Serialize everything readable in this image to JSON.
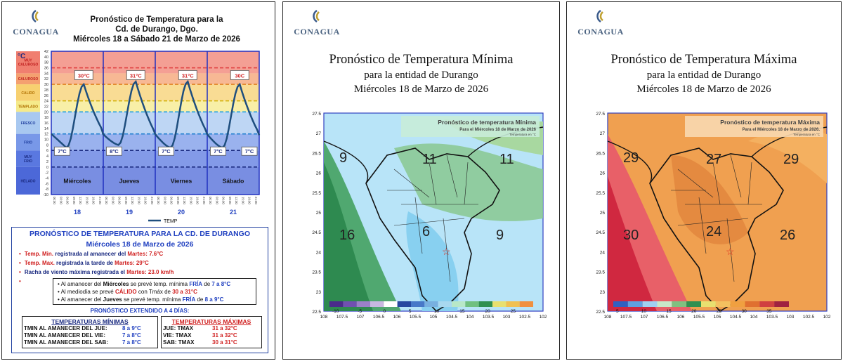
{
  "panel1": {
    "logo": "CONAGUA",
    "header": [
      "Pronóstico  de Temperatura para la",
      "Cd. de Durango, Dgo.",
      "Miércoles 18 a Sábado 21 de Marzo de 2026"
    ],
    "unit": "°C",
    "zones": [
      "MUY CALUROSO",
      "CALUROSO",
      "CALIDO",
      "TEMPLADO",
      "FRESCO",
      "FRIO",
      "MUY FRIO",
      "HELADO"
    ],
    "y_ticks": [
      "42",
      "40",
      "38",
      "36",
      "34",
      "32",
      "30",
      "28",
      "26",
      "24",
      "22",
      "20",
      "18",
      "16",
      "14",
      "12",
      "10",
      "8",
      "6",
      "4",
      "2",
      "0",
      "-2",
      "-4",
      "-6",
      "-8",
      "-10"
    ],
    "days": [
      "Miércoles",
      "Jueves",
      "Viernes",
      "Sábado"
    ],
    "day_numbers": [
      "18",
      "19",
      "20",
      "21"
    ],
    "max_labels": [
      "30°C",
      "31°C",
      "31°C",
      "30C"
    ],
    "min_labels": [
      "7°C",
      "8°C",
      "7°C",
      "7°C",
      "7°C"
    ],
    "legend": "TEMP",
    "box": {
      "title": "PRONÓSTICO DE TEMPERATURA PARA LA CD. DE DURANGO",
      "subtitle": "Miércoles 18 de Marzo de 2026",
      "rec1_a": "Temp. Min.",
      "rec1_b": " registrada al amanecer del ",
      "rec1_c": "Martes",
      "rec1_d": ": 7.6°C",
      "rec2_a": "Temp. Max.",
      "rec2_b": " registrada la tarde de ",
      "rec2_c": "Martes",
      "rec2_d": ":  29°C",
      "rec3_a": "Racha de viento máxima registrada el ",
      "rec3_b": "Martes",
      "rec3_c": ":  23.0 km/h",
      "l1_a": "Al amanecer del ",
      "l1_b": "Miércoles",
      "l1_c": " se prevé temp. mínima ",
      "l1_d": "FRÍA",
      "l1_e": " de ",
      "l1_f": "7 a 8°C",
      "l2_a": "Al mediodía se prevé ",
      "l2_b": "CÁLIDO",
      "l2_c": " con Tmáx de ",
      "l2_d": "30 a 31°C",
      "l3_a": "Al amanecer del ",
      "l3_b": "Jueves",
      "l3_c": " se prevé temp. mínima ",
      "l3_d": "FRÍA",
      "l3_e": " de ",
      "l3_f": "8 a 9°C",
      "extended": "PRONÓSTICO EXTENDIDO A 4 DÍAS:",
      "tmin_title": "TEMPERATURAS MÍNIMAS",
      "tmin_rows": [
        {
          "label": "TMIN AL AMANECER DEL  JUE:",
          "value": "8 a 9°C"
        },
        {
          "label": "TMIN AL AMANECER DEL  VIE:",
          "value": "7 a 8°C"
        },
        {
          "label": "TMIN AL AMANECER DEL  SAB:",
          "value": "7 a 8°C"
        }
      ],
      "tmax_title": "TEMPERATURAS MÁXIMAS",
      "tmax_rows": [
        {
          "label": "JUE:    TMAX",
          "value": "31 a 32°C"
        },
        {
          "label": "VIE:    TMAX",
          "value": "31 a 32°C"
        },
        {
          "label": "SAB:    TMAX",
          "value": "30 a 31°C"
        }
      ]
    }
  },
  "panel2": {
    "logo": "CONAGUA",
    "title": "Pronóstico de Temperatura Mínima",
    "subtitle": "para la entidad de Durango",
    "date": "Miércoles 18 de Marzo de 2026",
    "map_title": "Pronóstico de temperatura Mínima",
    "map_sub": "Para el Miércoles 18  de Marzo de 2026",
    "map_unit": "Temperatura en °C",
    "big_labels": [
      "9",
      "11",
      "11",
      "16",
      "6",
      "9"
    ],
    "colorbar": [
      "-10",
      "-5",
      "0",
      "5",
      "10",
      "15",
      "20",
      "25"
    ],
    "x_ticks": [
      "108",
      "107.5",
      "107",
      "106.5",
      "106",
      "105.5",
      "105",
      "104.5",
      "104",
      "103.5",
      "103",
      "102.5",
      "102"
    ],
    "y_ticks": [
      "27.5",
      "27",
      "26.5",
      "26",
      "25.5",
      "25",
      "24.5",
      "24",
      "23.5",
      "23",
      "22.5"
    ]
  },
  "panel3": {
    "logo": "CONAGUA",
    "title": "Pronóstico de Temperatura Máxima",
    "subtitle": "para la entidad de Durango",
    "date": "Miércoles 18 de Marzo de 2026",
    "map_title": "Pronóstico de temperatura Máxima",
    "map_sub": "Para el Miércoles 18  de Marzo de 2026.",
    "map_unit": "Temperatura en °C",
    "big_labels": [
      "29",
      "27",
      "29",
      "30",
      "24",
      "26"
    ],
    "colorbar": [
      "5",
      "10",
      "15",
      "20",
      "25",
      "30",
      "35"
    ],
    "x_ticks": [
      "108",
      "107.5",
      "107",
      "106.5",
      "106",
      "105.5",
      "105",
      "104.5",
      "104",
      "103.5",
      "103",
      "102.5",
      "102"
    ],
    "y_ticks": [
      "27.5",
      "27",
      "26.5",
      "26",
      "25.5",
      "25",
      "24.5",
      "24",
      "23.5",
      "23",
      "22.5"
    ]
  }
}
